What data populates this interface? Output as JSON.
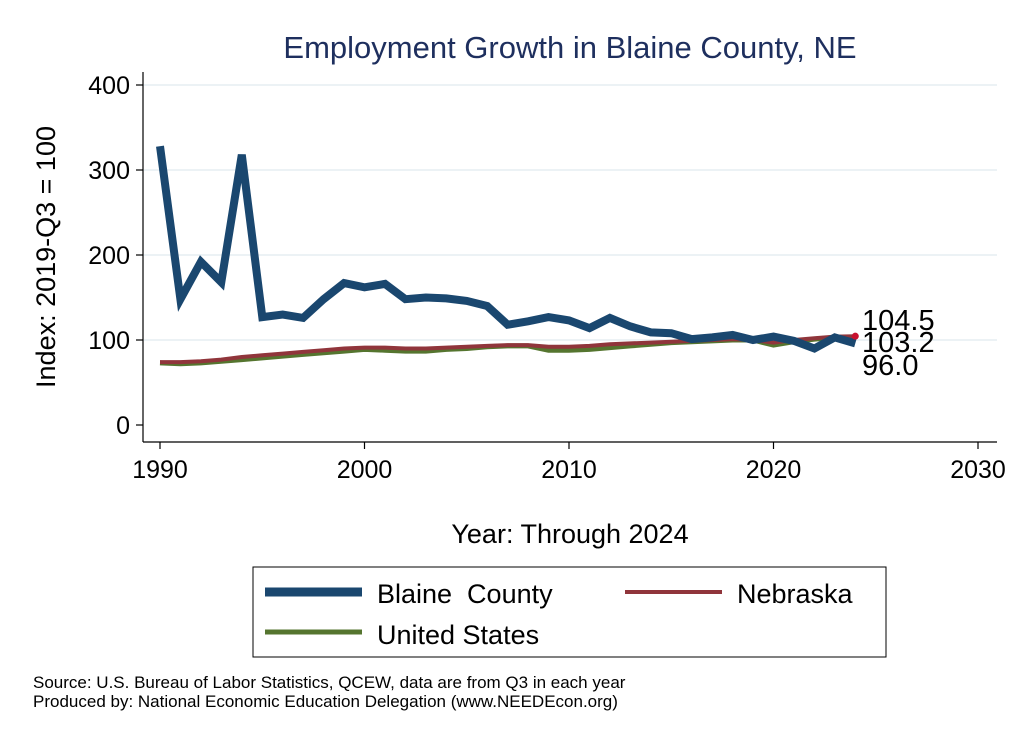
{
  "chart_data": {
    "type": "line",
    "title": "Employment Growth in Blaine County, NE",
    "xlabel": "Year: Through 2024",
    "ylabel": "Index: 2019-Q3 = 100",
    "xlim": [
      1990,
      2030
    ],
    "ylim": [
      0,
      420
    ],
    "x_ticks": [
      1990,
      2000,
      2010,
      2020,
      2030
    ],
    "y_ticks": [
      0,
      100,
      200,
      300,
      400
    ],
    "grid": true,
    "legend_position": "bottom",
    "x": [
      1990,
      1991,
      1992,
      1993,
      1994,
      1995,
      1996,
      1997,
      1998,
      1999,
      2000,
      2001,
      2002,
      2003,
      2004,
      2005,
      2006,
      2007,
      2008,
      2009,
      2010,
      2011,
      2012,
      2013,
      2014,
      2015,
      2016,
      2017,
      2018,
      2019,
      2020,
      2021,
      2022,
      2023,
      2024
    ],
    "series": [
      {
        "name": "Blaine  County",
        "color": "#1a476f",
        "values": [
          328,
          148,
          192,
          168,
          318,
          127,
          130,
          126,
          148,
          167,
          162,
          166,
          148,
          150,
          149,
          146,
          140,
          118,
          122,
          127,
          123,
          114,
          126,
          116,
          109,
          108,
          101,
          103,
          106,
          100,
          104,
          99,
          90,
          103,
          96.0
        ]
      },
      {
        "name": "Nebraska",
        "color": "#90353b",
        "values": [
          74,
          74,
          75,
          77,
          80,
          82,
          84,
          86,
          88,
          90,
          91,
          91,
          90,
          90,
          91,
          92,
          93,
          94,
          94,
          92,
          92,
          93,
          95,
          96,
          97,
          98,
          99,
          100,
          101,
          100,
          97,
          100,
          102,
          104,
          104.5
        ]
      },
      {
        "name": "United States",
        "color": "#55752f",
        "values": [
          73,
          72,
          73,
          75,
          77,
          79,
          81,
          83,
          85,
          87,
          89,
          88,
          87,
          87,
          89,
          90,
          92,
          93,
          93,
          88,
          88,
          89,
          91,
          93,
          95,
          97,
          98,
          99,
          100,
          100,
          94,
          98,
          101,
          103,
          103.2
        ]
      }
    ],
    "end_labels": [
      "104.5",
      "103.2",
      "96.0"
    ]
  },
  "source": {
    "line1": "Source: U.S. Bureau of Labor Statistics, QCEW, data are from Q3 in each year",
    "line2": "Produced by: National Economic Education Delegation (www.NEEDEcon.org)"
  }
}
